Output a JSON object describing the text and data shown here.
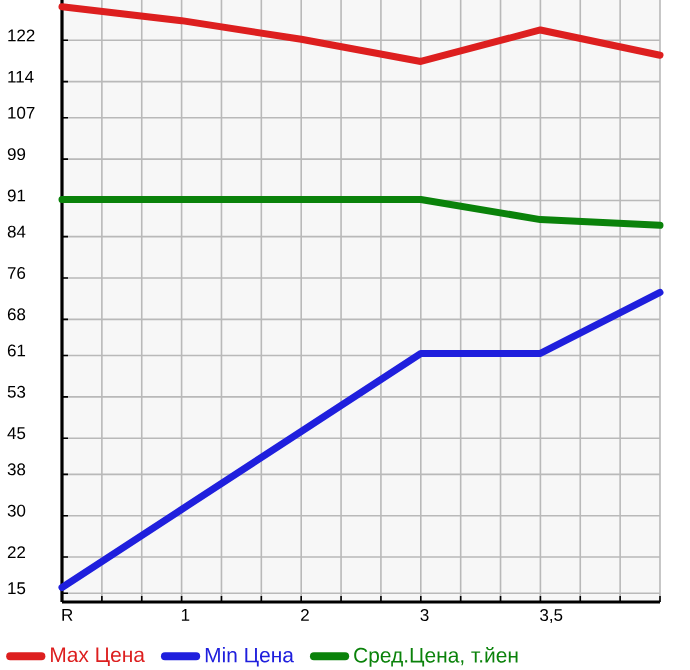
{
  "chart_data": {
    "type": "line",
    "categories": [
      "R",
      "1",
      "2",
      "3",
      "3,5",
      null
    ],
    "series": [
      {
        "name": "Max Цена",
        "color": "#dd1f1f",
        "values": [
          128.5,
          125.8,
          122.2,
          117.9,
          124.0,
          119.1
        ]
      },
      {
        "name": "Min Цена",
        "color": "#1f1fdd",
        "values": [
          16.1,
          31.2,
          46.3,
          61.4,
          61.4,
          73.2
        ]
      },
      {
        "name": "Сред.Цена, т.йен",
        "color": "#0a820a",
        "values": [
          91.2,
          91.2,
          91.2,
          91.2,
          87.3,
          86.2
        ]
      }
    ],
    "ylim": [
      13.3,
      129.8
    ],
    "yticks": [
      15,
      22,
      30,
      38,
      45,
      53,
      61,
      68,
      76,
      84,
      91,
      99,
      107,
      114,
      122
    ],
    "grid": true,
    "legend": "bottom",
    "marker": "none",
    "line_style": "solid"
  }
}
